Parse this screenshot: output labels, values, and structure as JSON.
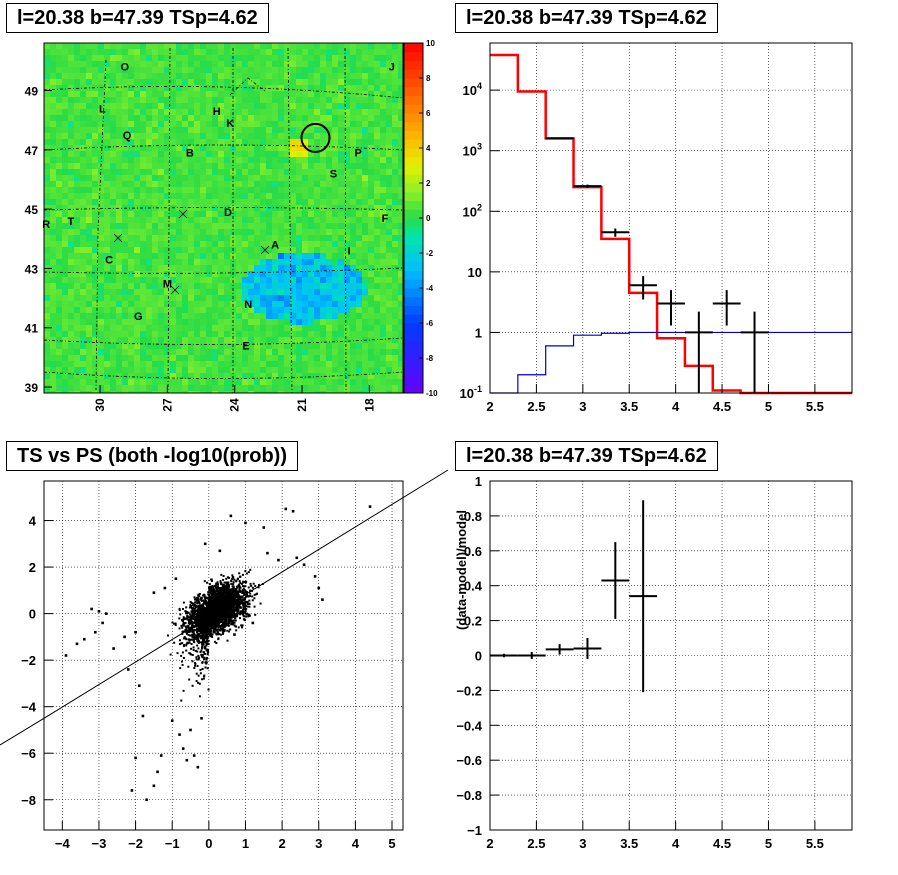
{
  "chart_data": [
    {
      "type": "heatmap",
      "title": "l=20.38 b=47.39 TSp=4.62",
      "x_ticks": [
        "30",
        "27",
        "24",
        "21",
        "18"
      ],
      "y_ticks": [
        "49",
        "47",
        "45",
        "43",
        "41",
        "39"
      ],
      "xlim": [
        32.5,
        16.5
      ],
      "ylim": [
        38.8,
        50.6
      ],
      "colorbar": {
        "min": -10,
        "max": 10,
        "ticks": [
          "10",
          "8",
          "6",
          "4",
          "2",
          "0",
          "-2",
          "-4",
          "-6",
          "-8",
          "-10"
        ]
      },
      "source_labels": [
        {
          "text": "O",
          "x": 28.9,
          "y": 49.8
        },
        {
          "text": "J",
          "x": 17.0,
          "y": 49.8
        },
        {
          "text": "L",
          "x": 29.9,
          "y": 48.4
        },
        {
          "text": "H",
          "x": 24.8,
          "y": 48.3
        },
        {
          "text": "K",
          "x": 24.2,
          "y": 47.9
        },
        {
          "text": "Q",
          "x": 28.8,
          "y": 47.5
        },
        {
          "text": "B",
          "x": 26.0,
          "y": 46.9
        },
        {
          "text": "P",
          "x": 18.5,
          "y": 46.9
        },
        {
          "text": "S",
          "x": 19.6,
          "y": 46.2
        },
        {
          "text": "D",
          "x": 24.3,
          "y": 44.9
        },
        {
          "text": "F",
          "x": 17.3,
          "y": 44.7
        },
        {
          "text": "R",
          "x": 32.4,
          "y": 44.5
        },
        {
          "text": "T",
          "x": 31.3,
          "y": 44.6
        },
        {
          "text": "A",
          "x": 22.2,
          "y": 43.8
        },
        {
          "text": "I",
          "x": 18.9,
          "y": 43.6
        },
        {
          "text": "C",
          "x": 29.6,
          "y": 43.3
        },
        {
          "text": "M",
          "x": 27.0,
          "y": 42.5
        },
        {
          "text": "N",
          "x": 23.4,
          "y": 41.8
        },
        {
          "text": "G",
          "x": 28.3,
          "y": 41.4
        },
        {
          "text": "E",
          "x": 23.5,
          "y": 40.4
        }
      ],
      "circle": {
        "x": 20.4,
        "y": 47.4
      }
    },
    {
      "type": "line",
      "title": "l=20.38 b=47.39 TSp=4.62",
      "yscale": "log",
      "xlim": [
        2,
        5.9
      ],
      "ylim": [
        0.1,
        60000
      ],
      "x_ticks": [
        "2",
        "2.5",
        "3",
        "3.5",
        "4",
        "4.5",
        "5",
        "5.5"
      ],
      "y_ticks": [
        "10^-1",
        "1",
        "10",
        "10^2",
        "10^3",
        "10^4"
      ],
      "series": [
        {
          "color": "#ff0000",
          "edges": [
            2,
            2.3,
            2.6,
            2.9,
            3.2,
            3.5,
            3.8,
            4.1,
            4.4,
            4.7,
            5.0,
            5.3,
            5.6,
            5.9
          ],
          "values": [
            38000,
            9500,
            1600,
            250,
            35,
            4.5,
            0.8,
            0.28,
            0.11,
            0.1,
            0.1,
            0.1,
            0.1
          ]
        },
        {
          "color": "#0000cc",
          "edges": [
            2,
            2.3,
            2.6,
            2.9,
            3.2,
            3.5,
            3.8,
            4.1,
            4.4,
            4.7,
            5.0,
            5.3,
            5.6,
            5.9
          ],
          "values": [
            0.1,
            0.2,
            0.6,
            0.9,
            0.97,
            1.0,
            1.0,
            1.0,
            1.0,
            1.0,
            1.0,
            1.0,
            1.0
          ]
        }
      ],
      "points": [
        {
          "x": 2.75,
          "xerr": 0.15,
          "y": 1600,
          "ylo": 1550,
          "yhi": 1660
        },
        {
          "x": 3.05,
          "xerr": 0.15,
          "y": 260,
          "ylo": 245,
          "yhi": 275
        },
        {
          "x": 3.35,
          "xerr": 0.15,
          "y": 45,
          "ylo": 38,
          "yhi": 52
        },
        {
          "x": 3.65,
          "xerr": 0.15,
          "y": 6,
          "ylo": 3.5,
          "yhi": 8.5
        },
        {
          "x": 3.95,
          "xerr": 0.15,
          "y": 3,
          "ylo": 1.3,
          "yhi": 5
        },
        {
          "x": 4.25,
          "xerr": 0.15,
          "y": 1,
          "ylo": 0.1,
          "yhi": 2.2
        },
        {
          "x": 4.55,
          "xerr": 0.15,
          "y": 3,
          "ylo": 1.3,
          "yhi": 5
        },
        {
          "x": 4.85,
          "xerr": 0.15,
          "y": 1,
          "ylo": 0.1,
          "yhi": 2.2
        }
      ]
    },
    {
      "type": "scatter",
      "title": "TS vs PS (both -log10(prob))",
      "xlim": [
        -4.5,
        5.3
      ],
      "ylim": [
        -9.3,
        5.7
      ],
      "x_ticks": [
        "−4",
        "−3",
        "−2",
        "−1",
        "0",
        "1",
        "2",
        "3",
        "4",
        "5"
      ],
      "y_ticks": [
        "−8",
        "−6",
        "−4",
        "−2",
        "0",
        "2",
        "4"
      ],
      "fit_line": {
        "slope": 1,
        "intercept": 0
      },
      "points": [
        [
          4.4,
          4.6
        ],
        [
          2.3,
          4.4
        ],
        [
          2.1,
          4.5
        ],
        [
          0.6,
          4.2
        ],
        [
          1.0,
          3.9
        ],
        [
          1.5,
          3.7
        ],
        [
          -0.1,
          3.0
        ],
        [
          0.3,
          2.7
        ],
        [
          2.4,
          2.4
        ],
        [
          2.6,
          2.1
        ],
        [
          2.9,
          1.6
        ],
        [
          3.0,
          1.1
        ],
        [
          3.1,
          0.6
        ],
        [
          -3.2,
          0.2
        ],
        [
          -3.0,
          0.1
        ],
        [
          -2.8,
          0.0
        ],
        [
          -2.9,
          -0.4
        ],
        [
          -3.1,
          -0.8
        ],
        [
          -3.6,
          -1.3
        ],
        [
          -3.4,
          -1.1
        ],
        [
          -3.9,
          -1.8
        ],
        [
          -2.6,
          -1.5
        ],
        [
          -2.3,
          -1.0
        ],
        [
          -2.0,
          -0.8
        ],
        [
          -2.2,
          -2.4
        ],
        [
          -1.9,
          -3.1
        ],
        [
          -1.8,
          -4.4
        ],
        [
          -2.0,
          -6.2
        ],
        [
          -2.1,
          -7.6
        ],
        [
          -1.7,
          -8.0
        ],
        [
          -1.5,
          -7.4
        ],
        [
          -1.4,
          -6.8
        ],
        [
          -1.3,
          -6.1
        ],
        [
          -0.7,
          -5.8
        ],
        [
          -0.6,
          -6.3
        ],
        [
          -0.3,
          -6.6
        ],
        [
          -0.4,
          -6.1
        ],
        [
          -0.8,
          -5.2
        ],
        [
          -1.0,
          -4.6
        ],
        [
          -0.5,
          -5.0
        ],
        [
          -0.2,
          -4.5
        ],
        [
          1.6,
          2.6
        ],
        [
          1.9,
          2.3
        ],
        [
          0.7,
          -0.9
        ],
        [
          1.2,
          -0.4
        ],
        [
          -1.2,
          1.1
        ],
        [
          -1.5,
          0.9
        ],
        [
          -0.9,
          1.5
        ]
      ],
      "cluster": {
        "cx": 0.2,
        "cy": 0.0,
        "sx": 0.55,
        "sy": 0.65,
        "n": 3000
      }
    },
    {
      "type": "scatter",
      "title": "l=20.38 b=47.39 TSp=4.62",
      "ylabel": "(data-model)/model",
      "xlim": [
        2,
        5.9
      ],
      "ylim": [
        -1,
        1
      ],
      "x_ticks": [
        "2",
        "2.5",
        "3",
        "3.5",
        "4",
        "4.5",
        "5",
        "5.5"
      ],
      "y_ticks": [
        "−1",
        "−0.8",
        "−0.6",
        "−0.4",
        "−0.2",
        "0",
        "0.2",
        "0.4",
        "0.6",
        "0.8",
        "1"
      ],
      "points": [
        {
          "x": 2.15,
          "xerr": 0.15,
          "y": 0.0,
          "yerr": 0.01
        },
        {
          "x": 2.45,
          "xerr": 0.15,
          "y": 0.0,
          "yerr": 0.02
        },
        {
          "x": 2.75,
          "xerr": 0.15,
          "y": 0.035,
          "yerr": 0.03
        },
        {
          "x": 3.05,
          "xerr": 0.15,
          "y": 0.04,
          "yerr": 0.06
        },
        {
          "x": 3.35,
          "xerr": 0.15,
          "y": 0.43,
          "yerr": 0.22
        },
        {
          "x": 3.65,
          "xerr": 0.15,
          "y": 0.34,
          "yerr": 0.55
        }
      ]
    }
  ]
}
